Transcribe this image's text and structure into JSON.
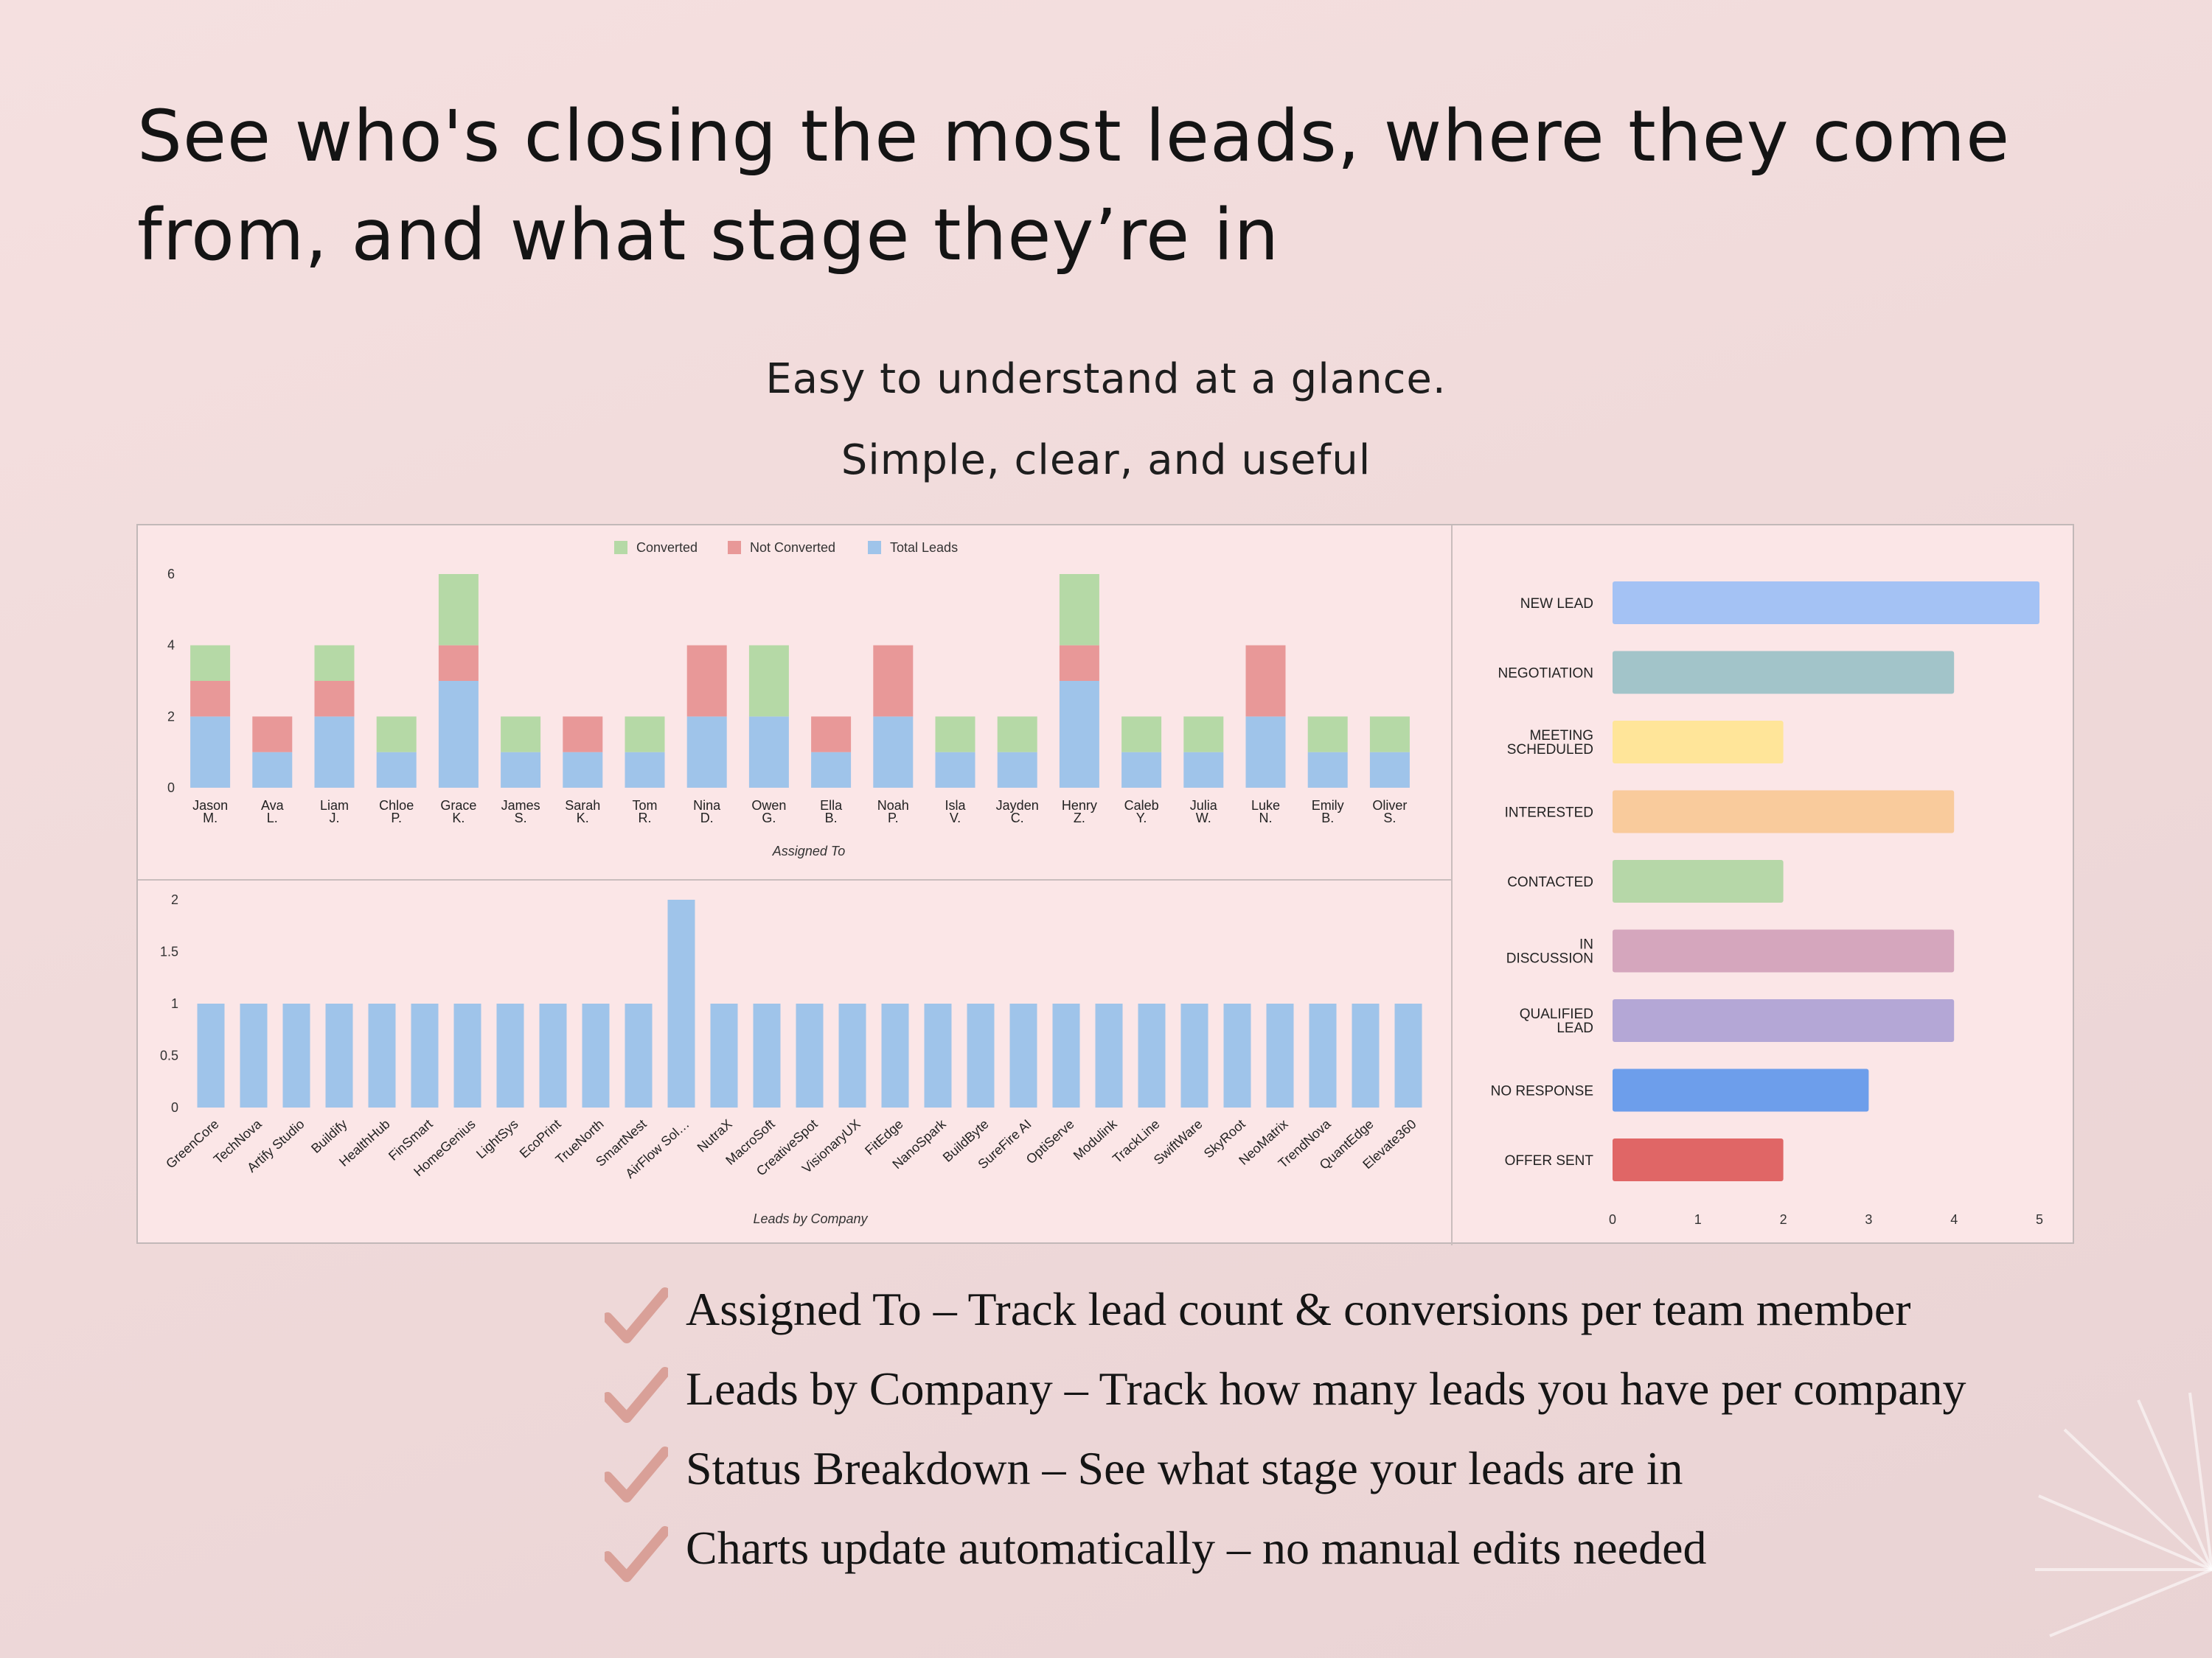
{
  "headline": "See who's closing the most leads, where they come from, and what stage they’re in",
  "subtitle1": "Easy to understand at a glance.",
  "subtitle2": "Simple, clear, and useful",
  "colors": {
    "converted": "#b5d9a6",
    "not_converted": "#e89898",
    "total_leads": "#9fc4ea",
    "check": "#d9a098"
  },
  "chart_data": [
    {
      "type": "bar",
      "stacked": true,
      "xlabel": "Assigned To",
      "ylabel": "",
      "ylim": [
        0,
        6
      ],
      "yticks": [
        0,
        2,
        4,
        6
      ],
      "legend_position": "top-center",
      "categories": [
        "Jason M.",
        "Ava L.",
        "Liam J.",
        "Chloe P.",
        "Grace K.",
        "James S.",
        "Sarah K.",
        "Tom R.",
        "Nina D.",
        "Owen G.",
        "Ella B.",
        "Noah P.",
        "Isla V.",
        "Jayden C.",
        "Henry Z.",
        "Caleb Y.",
        "Julia W.",
        "Luke N.",
        "Emily B.",
        "Oliver S."
      ],
      "series": [
        {
          "name": "Total Leads",
          "color": "#9fc4ea",
          "values": [
            2,
            1,
            2,
            1,
            3,
            1,
            1,
            1,
            2,
            2,
            1,
            2,
            1,
            1,
            3,
            1,
            1,
            2,
            1,
            1
          ]
        },
        {
          "name": "Not Converted",
          "color": "#e89898",
          "values": [
            1,
            1,
            1,
            0,
            1,
            0,
            1,
            0,
            2,
            0,
            1,
            2,
            0,
            0,
            1,
            0,
            0,
            2,
            0,
            0
          ]
        },
        {
          "name": "Converted",
          "color": "#b5d9a6",
          "values": [
            1,
            0,
            1,
            1,
            2,
            1,
            0,
            1,
            0,
            2,
            0,
            0,
            1,
            1,
            2,
            1,
            1,
            0,
            1,
            1
          ]
        }
      ],
      "legend_order": [
        "Converted",
        "Not Converted",
        "Total Leads"
      ]
    },
    {
      "type": "bar",
      "xlabel": "Leads by Company",
      "ylabel": "",
      "ylim": [
        0,
        2
      ],
      "yticks": [
        "0",
        "0.5",
        "1",
        "1.5",
        "2"
      ],
      "categories": [
        "GreenCore",
        "TechNova",
        "Artify Studio",
        "Buildify",
        "HealthHub",
        "FinSmart",
        "HomeGenius",
        "LightSys",
        "EcoPrint",
        "TrueNorth",
        "SmartNest",
        "AirFlow Sol…",
        "NutraX",
        "MacroSoft",
        "CreativeSpot",
        "VisionaryUX",
        "FitEdge",
        "NanoSpark",
        "BuildByte",
        "SureFire AI",
        "OptiServe",
        "Modulink",
        "TrackLine",
        "SwiftWare",
        "SkyRoot",
        "NeoMatrix",
        "TrendNova",
        "QuantEdge",
        "Elevate360"
      ],
      "values": [
        1,
        1,
        1,
        1,
        1,
        1,
        1,
        1,
        1,
        1,
        1,
        2,
        1,
        1,
        1,
        1,
        1,
        1,
        1,
        1,
        1,
        1,
        1,
        1,
        1,
        1,
        1,
        1,
        1
      ],
      "color": "#9fc4ea"
    },
    {
      "type": "bar",
      "orientation": "horizontal",
      "xlim": [
        0,
        5
      ],
      "xticks": [
        0,
        1,
        2,
        3,
        4,
        5
      ],
      "categories": [
        "NEW LEAD",
        "NEGOTIATION",
        "MEETING SCHEDULED",
        "INTERESTED",
        "CONTACTED",
        "IN DISCUSSION",
        "QUALIFIED LEAD",
        "NO RESPONSE",
        "OFFER SENT"
      ],
      "labels": [
        [
          "NEW LEAD"
        ],
        [
          "NEGOTIATION"
        ],
        [
          "MEETING",
          "SCHEDULED"
        ],
        [
          "INTERESTED"
        ],
        [
          "CONTACTED"
        ],
        [
          "IN",
          "DISCUSSION"
        ],
        [
          "QUALIFIED",
          "LEAD"
        ],
        [
          "NO RESPONSE"
        ],
        [
          "OFFER SENT"
        ]
      ],
      "values": [
        5,
        4,
        2,
        4,
        2,
        4,
        4,
        3,
        2
      ],
      "colors": [
        "#a4c2f4",
        "#a2c4c9",
        "#ffe599",
        "#f9cb9c",
        "#b6d7a8",
        "#d5a6bd",
        "#b4a7d6",
        "#6d9eeb",
        "#e06666"
      ]
    }
  ],
  "features": [
    {
      "text": "Assigned To – Track lead count & conversions per team member"
    },
    {
      "text": "Leads by Company – Track how many leads you have per company"
    },
    {
      "text": "Status Breakdown –  See what stage your leads are in"
    },
    {
      "text": "Charts update automatically – no manual edits needed"
    }
  ]
}
